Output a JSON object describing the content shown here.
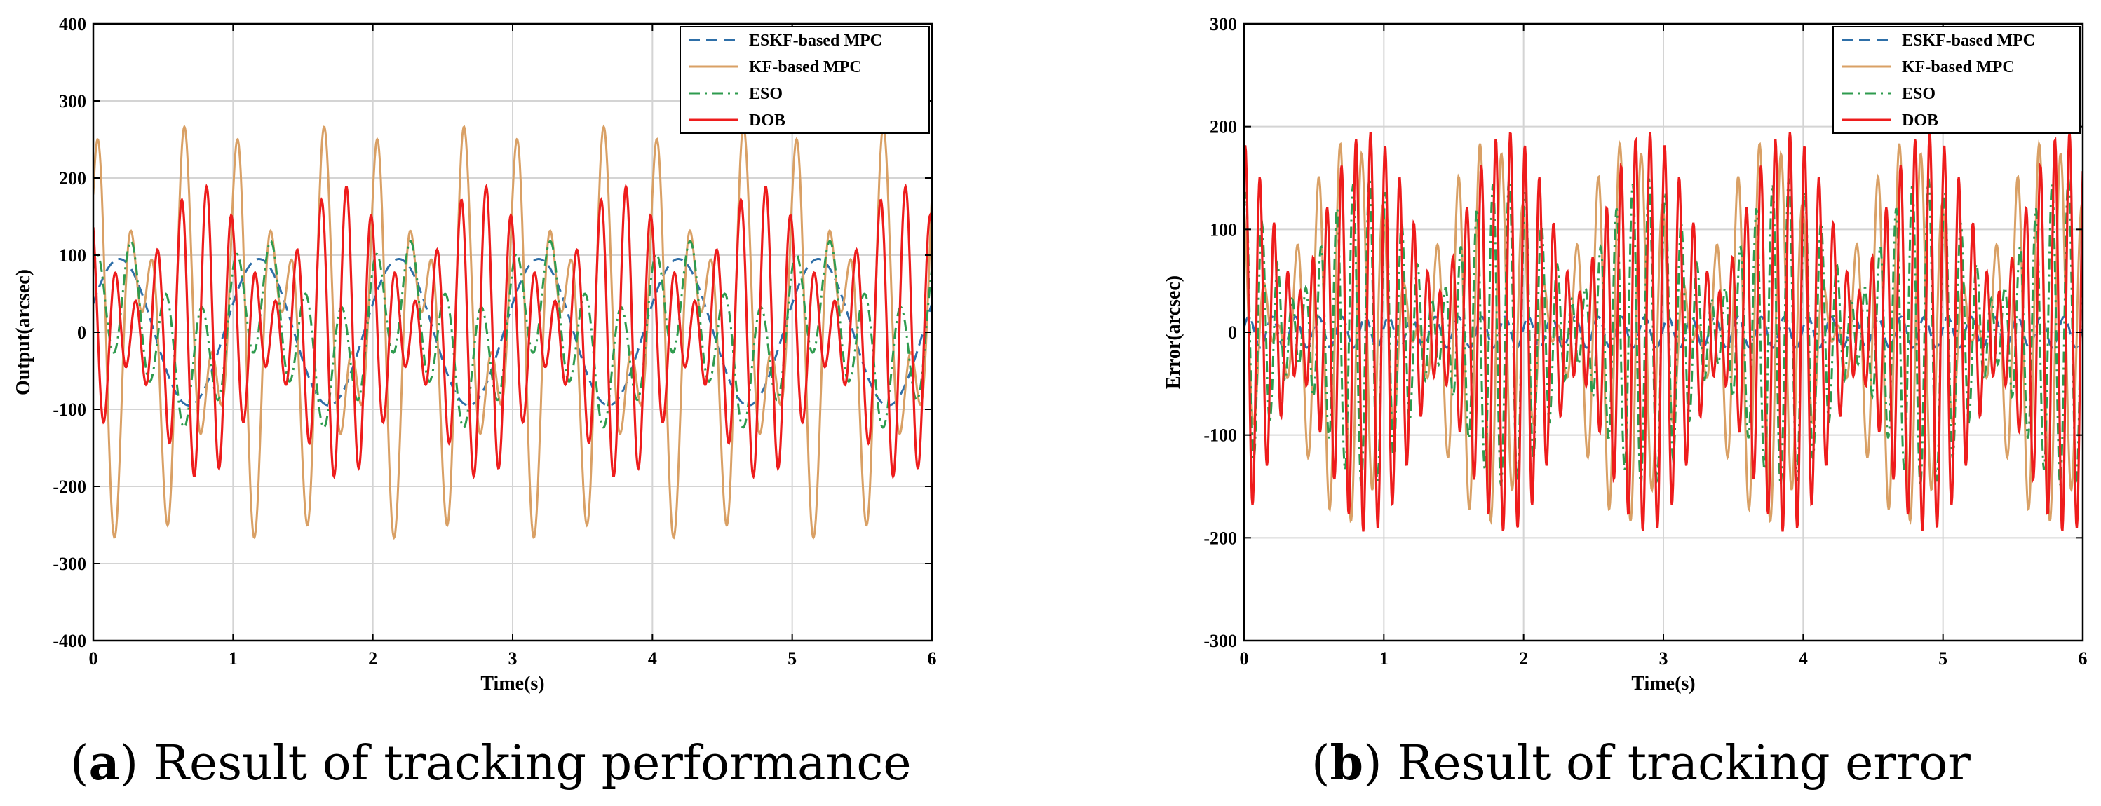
{
  "chart_data": [
    {
      "type": "line",
      "id": "a",
      "xlabel": "Time(s)",
      "ylabel": "Output(arcsec)",
      "xlim": [
        0,
        6
      ],
      "ylim": [
        -400,
        400
      ],
      "xticks": [
        0,
        1,
        2,
        3,
        4,
        5,
        6
      ],
      "yticks": [
        -400,
        -300,
        -200,
        -100,
        0,
        100,
        200,
        300,
        400
      ],
      "grid": true,
      "legend_position": "top-right",
      "caption_letter": "a",
      "caption_text": "Result of tracking performance",
      "series": [
        {
          "name": "ESKF-based MPC",
          "color": "#2e6fa8",
          "style": "dashed",
          "amplitude": 95,
          "components": [
            {
              "amp": 1.0,
              "freq": 1,
              "phase": 0.4
            }
          ]
        },
        {
          "name": "KF-based MPC",
          "color": "#d9a065",
          "style": "solid",
          "amplitude": 280,
          "components": [
            {
              "amp": 0.55,
              "freq": 3,
              "phase": 1.5
            },
            {
              "amp": 0.45,
              "freq": 5,
              "phase": 0.2
            }
          ]
        },
        {
          "name": "ESO",
          "color": "#2e9b4e",
          "style": "dashdot",
          "amplitude": 125,
          "components": [
            {
              "amp": 0.6,
              "freq": 4,
              "phase": 1.0
            },
            {
              "amp": 0.4,
              "freq": 1,
              "phase": 0.4
            }
          ]
        },
        {
          "name": "DOB",
          "color": "#ee1c1c",
          "style": "solid",
          "amplitude": 190,
          "components": [
            {
              "amp": 0.6,
              "freq": 6,
              "phase": 2.5
            },
            {
              "amp": 0.4,
              "freq": 5,
              "phase": 1.1
            }
          ]
        }
      ]
    },
    {
      "type": "line",
      "id": "b",
      "xlabel": "Time(s)",
      "ylabel": "Error(arcsec)",
      "xlim": [
        0,
        6
      ],
      "ylim": [
        -300,
        300
      ],
      "xticks": [
        0,
        1,
        2,
        3,
        4,
        5,
        6
      ],
      "yticks": [
        -300,
        -200,
        -100,
        0,
        100,
        200,
        300
      ],
      "grid": true,
      "legend_position": "top-right",
      "caption_letter": "b",
      "caption_text": "Result of tracking error",
      "series": [
        {
          "name": "ESKF-based MPC",
          "color": "#2e6fa8",
          "style": "dashed",
          "amplitude": 15,
          "components": [
            {
              "amp": 1.0,
              "freq": 6,
              "phase": 0.3
            }
          ]
        },
        {
          "name": "KF-based MPC",
          "color": "#d9a065",
          "style": "solid",
          "amplitude": 185,
          "components": [
            {
              "amp": 0.5,
              "freq": 7,
              "phase": 2.6
            },
            {
              "amp": 0.5,
              "freq": 6,
              "phase": 0.9
            }
          ]
        },
        {
          "name": "ESO",
          "color": "#2e9b4e",
          "style": "dashdot",
          "amplitude": 150,
          "components": [
            {
              "amp": 0.6,
              "freq": 9,
              "phase": 1.2
            },
            {
              "amp": 0.4,
              "freq": 8,
              "phase": 0.4
            }
          ]
        },
        {
          "name": "DOB",
          "color": "#ee1c1c",
          "style": "solid",
          "amplitude": 195,
          "components": [
            {
              "amp": 0.6,
              "freq": 10,
              "phase": 1.3
            },
            {
              "amp": 0.4,
              "freq": 9,
              "phase": 0.6
            }
          ]
        }
      ]
    }
  ]
}
